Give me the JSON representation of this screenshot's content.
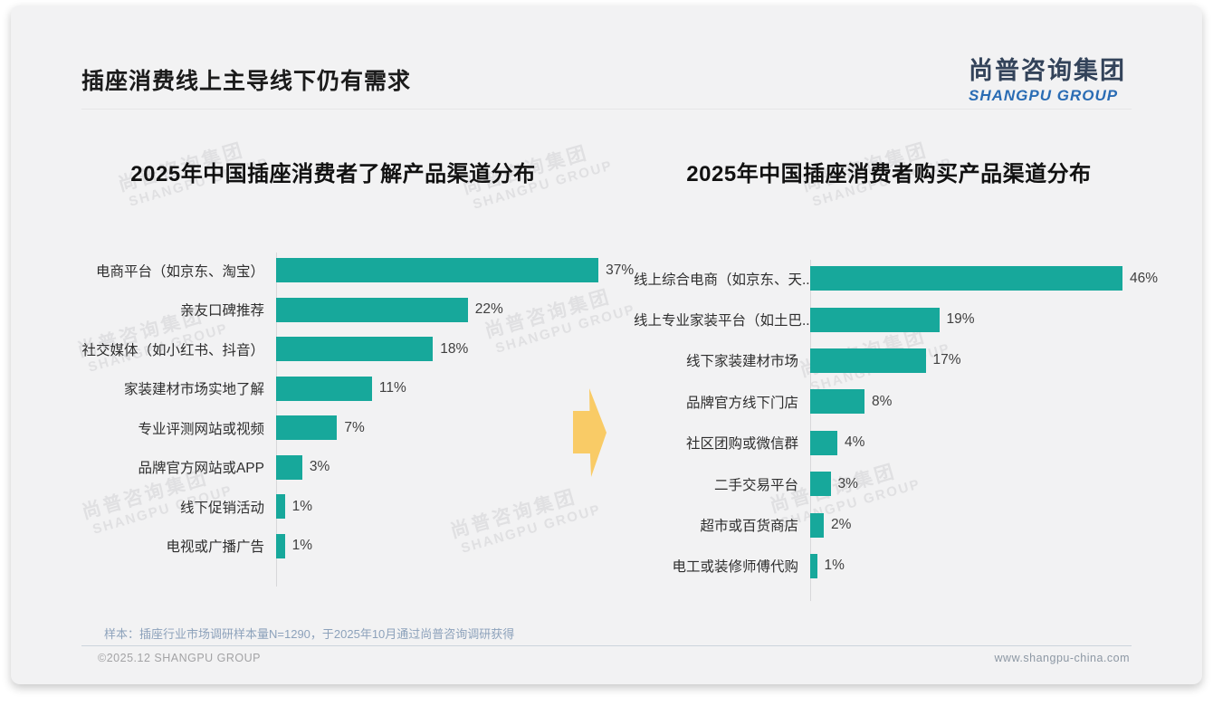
{
  "header": {
    "title": "插座消费线上主导线下仍有需求",
    "logo_cn": "尚普咨询集团",
    "logo_en": "SHANGPU GROUP"
  },
  "watermark": {
    "cn": "尚普咨询集团",
    "en": "SHANGPU GROUP"
  },
  "footer": {
    "note": "样本：插座行业市场调研样本量N=1290，于2025年10月通过尚普咨询调研获得",
    "copyright": "©2025.12 SHANGPU GROUP",
    "website": "www.shangpu-china.com"
  },
  "colors": {
    "bar_teal": "#17a89b",
    "arrow_yellow": "#f9cb66",
    "logo_blue": "#2a6cb4",
    "logo_dark": "#33435a",
    "slide_bg": "#f2f2f3"
  },
  "chart_data": [
    {
      "type": "bar",
      "orientation": "horizontal",
      "title": "2025年中国插座消费者了解产品渠道分布",
      "categories": [
        "电商平台（如京东、淘宝）",
        "亲友口碑推荐",
        "社交媒体（如小红书、抖音）",
        "家装建材市场实地了解",
        "专业评测网站或视频",
        "品牌官方网站或APP",
        "线下促销活动",
        "电视或广播广告"
      ],
      "values": [
        37,
        22,
        18,
        11,
        7,
        3,
        1,
        1
      ],
      "unit": "%",
      "xlim": [
        0,
        40
      ],
      "grid": false,
      "legend": "none",
      "bar_color": "#17a89b"
    },
    {
      "type": "bar",
      "orientation": "horizontal",
      "title": "2025年中国插座消费者购买产品渠道分布",
      "categories": [
        "线上综合电商（如京东、天...",
        "线上专业家装平台（如土巴...",
        "线下家装建材市场",
        "品牌官方线下门店",
        "社区团购或微信群",
        "二手交易平台",
        "超市或百货商店",
        "电工或装修师傅代购"
      ],
      "values": [
        46,
        19,
        17,
        8,
        4,
        3,
        2,
        1
      ],
      "unit": "%",
      "xlim": [
        0,
        50
      ],
      "grid": false,
      "legend": "none",
      "bar_color": "#17a89b"
    }
  ]
}
